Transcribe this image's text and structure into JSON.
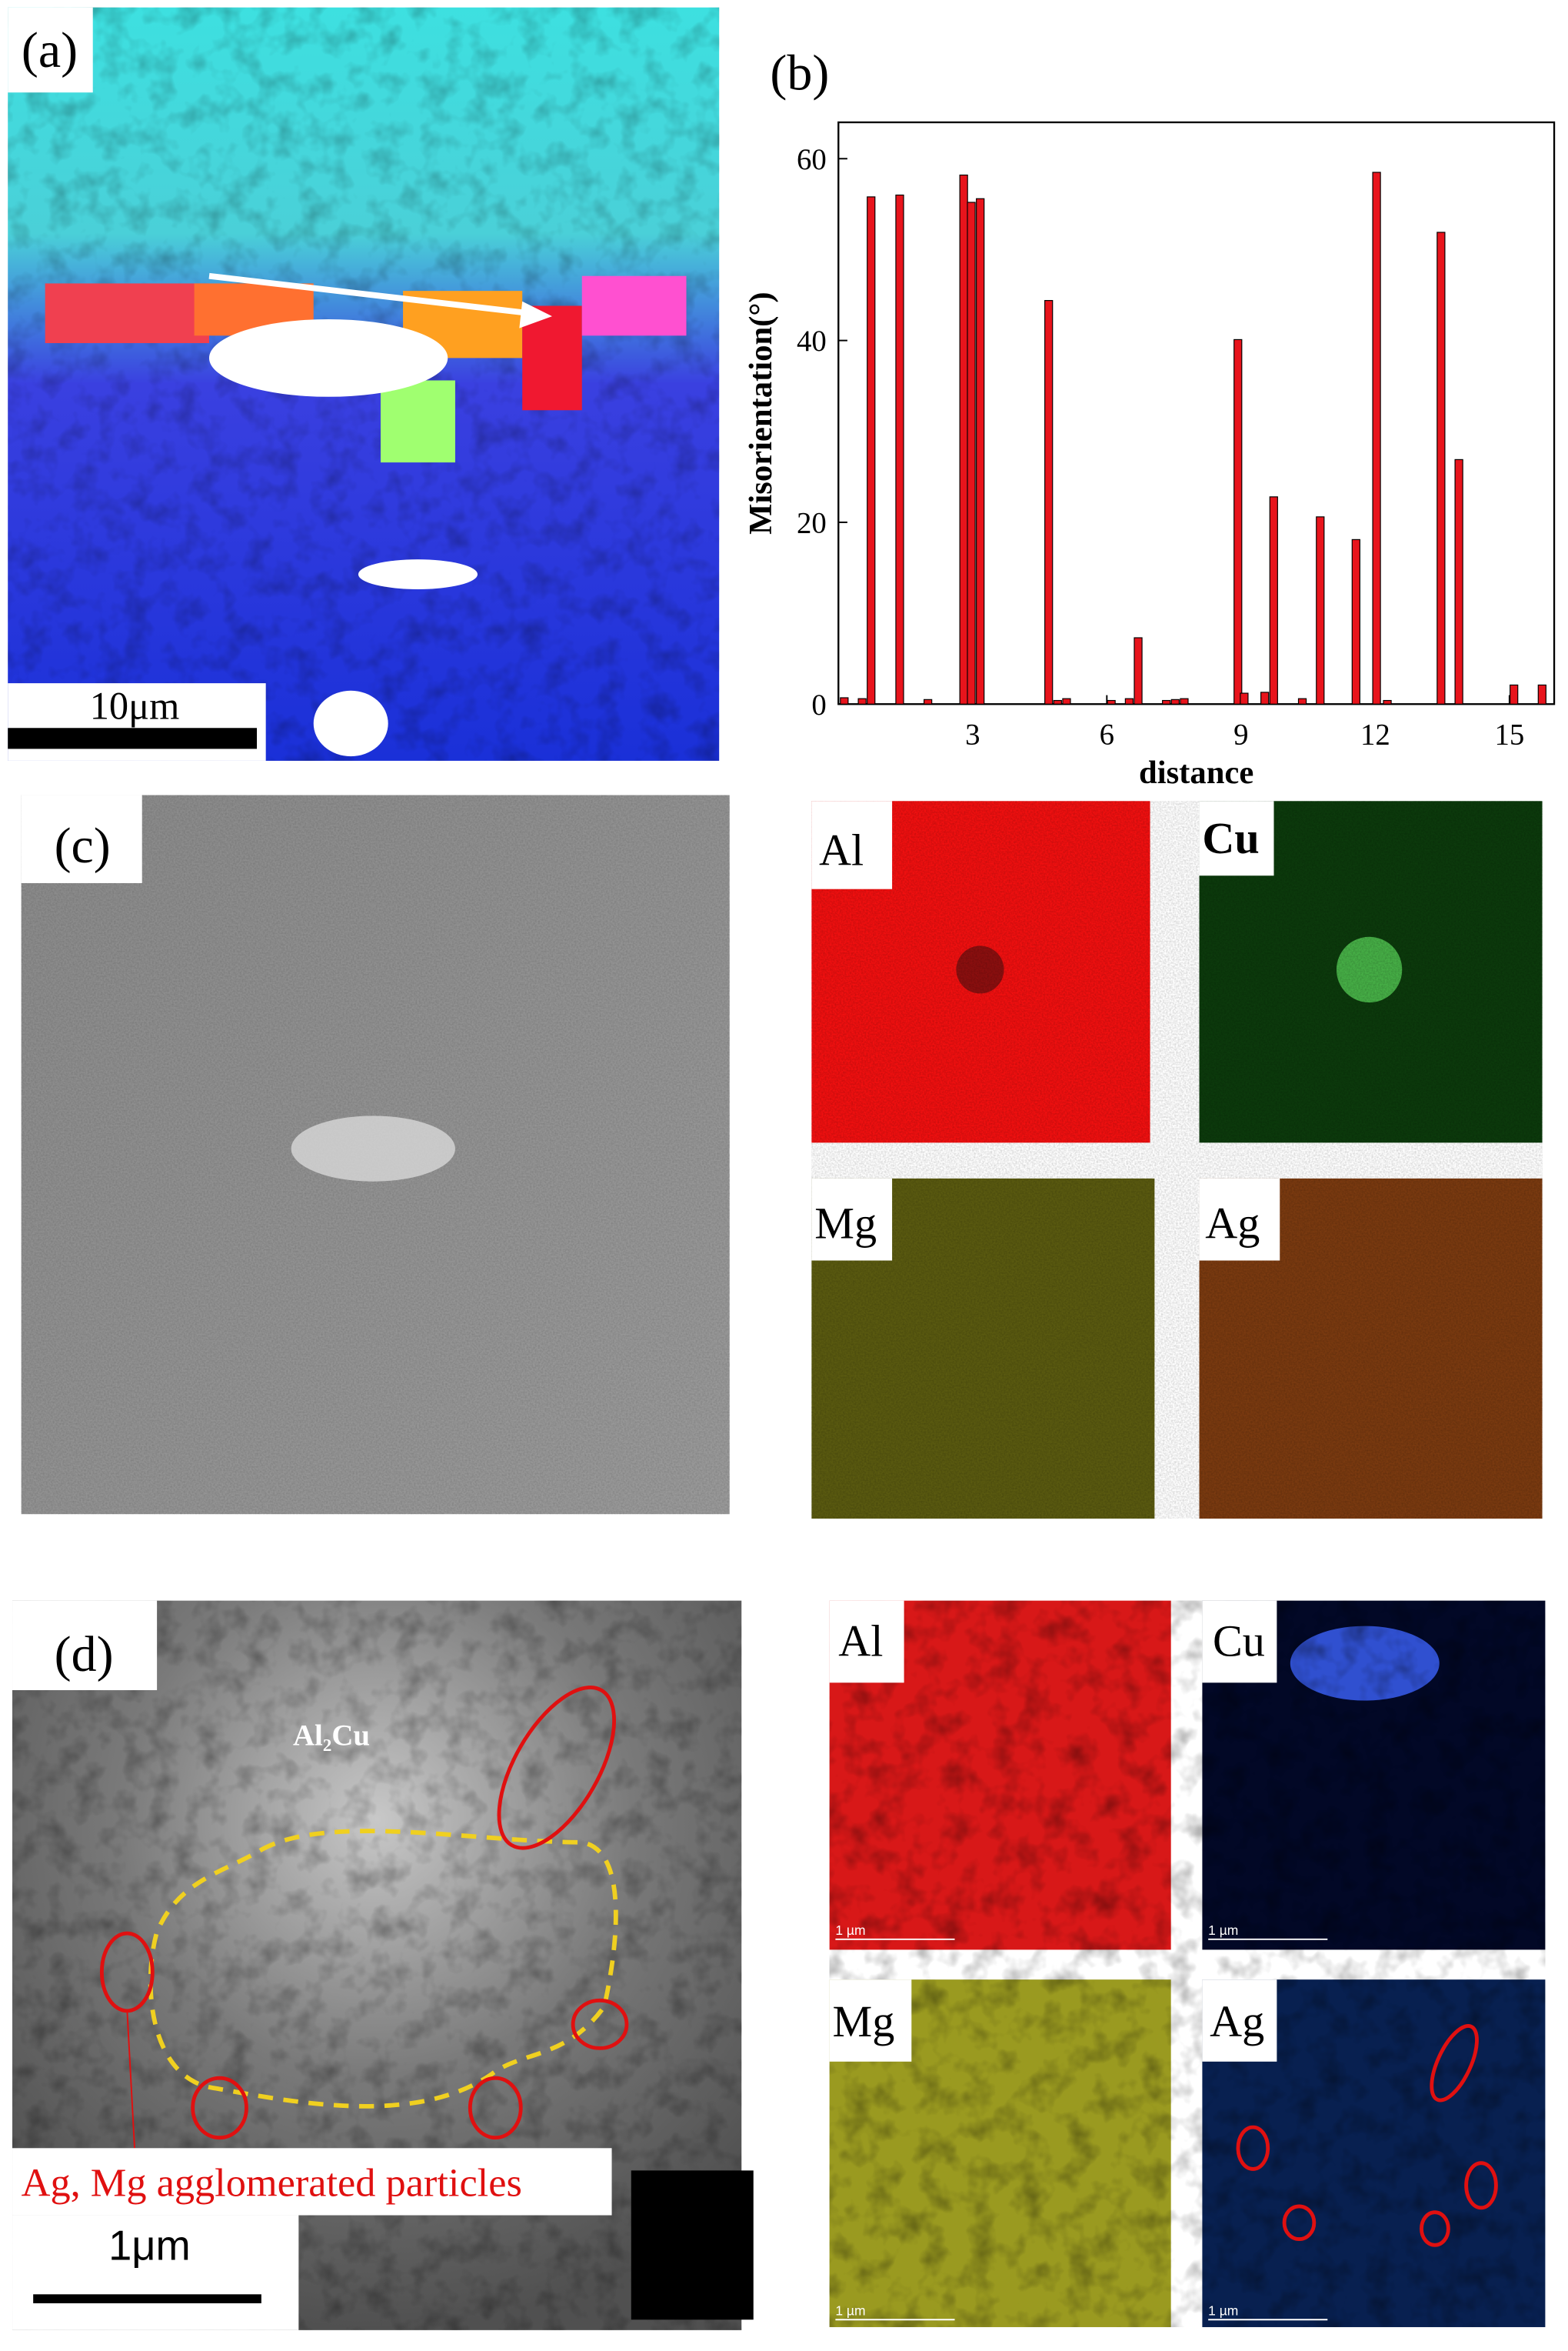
{
  "chart_data": {
    "type": "bar",
    "xlabel": "distance",
    "ylabel": "Misorientation(°)",
    "x": [
      0.13,
      0.53,
      0.73,
      1.37,
      2.0,
      2.8,
      2.97,
      3.17,
      4.7,
      4.9,
      5.1,
      6.1,
      6.5,
      6.7,
      7.33,
      7.53,
      7.73,
      8.93,
      9.07,
      9.53,
      9.73,
      10.37,
      10.77,
      11.57,
      12.03,
      12.27,
      13.47,
      13.87,
      15.1,
      15.73
    ],
    "values": [
      0.7,
      0.6,
      55.8,
      56,
      0.5,
      58.2,
      55.2,
      55.6,
      44.4,
      0.4,
      0.6,
      0.4,
      0.6,
      7.3,
      0.4,
      0.5,
      0.6,
      40.1,
      1.2,
      1.3,
      22.8,
      0.6,
      20.6,
      18.1,
      58.5,
      0.4,
      51.9,
      26.9,
      2.1,
      2.1
    ],
    "color": "#e8141c",
    "xlim": [
      0,
      16
    ],
    "ylim": [
      0,
      64
    ],
    "xticks": [
      3,
      6,
      9,
      12,
      15
    ],
    "yticks": [
      0,
      20,
      40,
      60
    ]
  },
  "panels": {
    "a": {
      "label": "(a)",
      "scale_bar": "10μm"
    },
    "b": {
      "label": "(b)"
    },
    "c": {
      "label": "(c)",
      "maps": [
        "Al",
        "Cu",
        "Mg",
        "Ag"
      ]
    },
    "d": {
      "label": "(d)",
      "phase": "Al₂Cu",
      "annotation": "Ag, Mg agglomerated particles",
      "scale_bar": "1μm",
      "maps": [
        "Al",
        "Cu",
        "Mg",
        "Ag"
      ],
      "map_scale": [
        "1 µm",
        "1 µm",
        "1 µm",
        "1 µm"
      ]
    }
  }
}
